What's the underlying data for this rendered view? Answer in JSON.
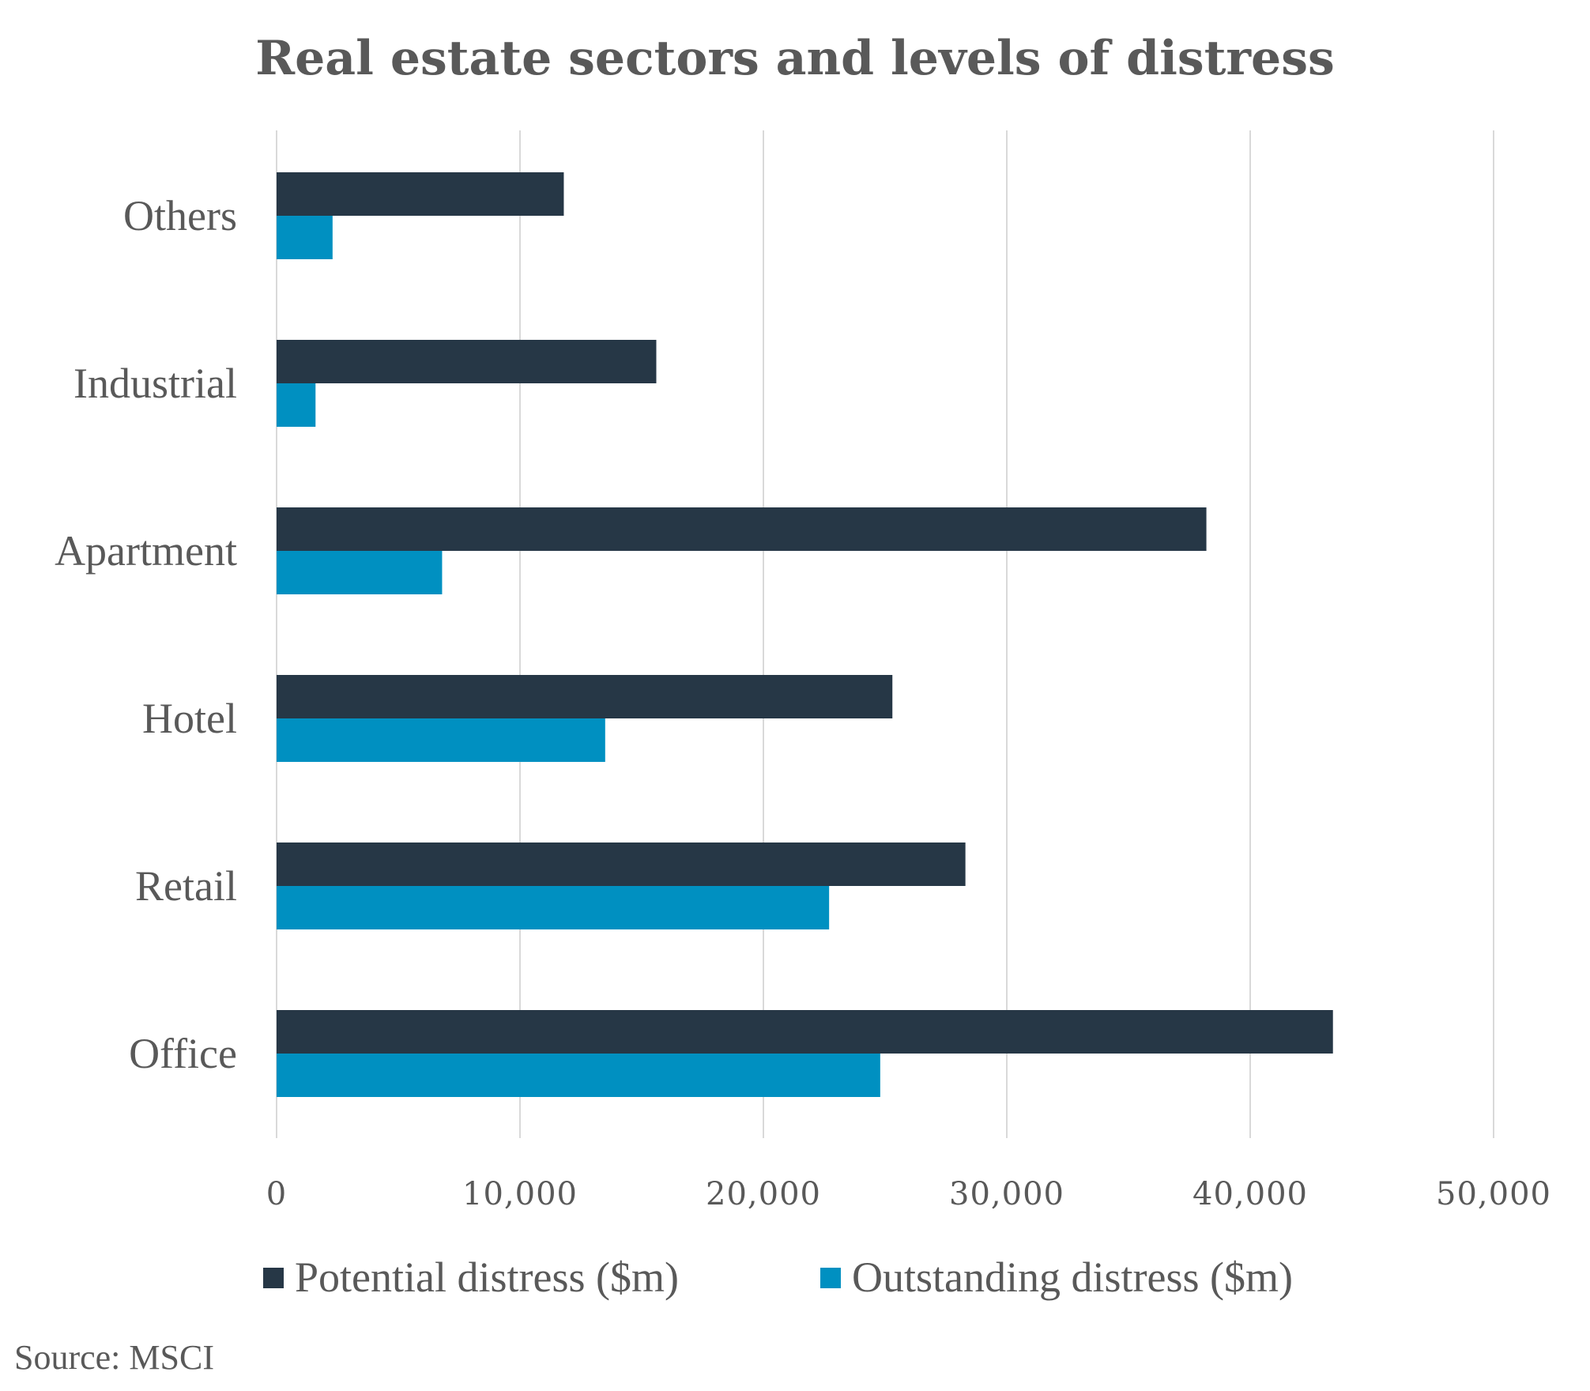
{
  "chart_data": {
    "type": "bar",
    "orientation": "horizontal",
    "title": "Real estate sectors and levels of distress",
    "categories": [
      "Others",
      "Industrial",
      "Apartment",
      "Hotel",
      "Retail",
      "Office"
    ],
    "series": [
      {
        "name": "Potential distress ($m)",
        "color": "#263746",
        "values": [
          11800,
          15600,
          38200,
          25300,
          28300,
          43400
        ]
      },
      {
        "name": "Outstanding distress ($m)",
        "color": "#0090c1",
        "values": [
          2300,
          1600,
          6800,
          13500,
          22700,
          24800
        ]
      }
    ],
    "xlim": [
      0,
      50000
    ],
    "xticks": [
      "0",
      "10,000",
      "20,000",
      "30,000",
      "40,000",
      "50,000"
    ],
    "grid": true,
    "legend_position": "bottom",
    "source": "Source: MSCI"
  }
}
